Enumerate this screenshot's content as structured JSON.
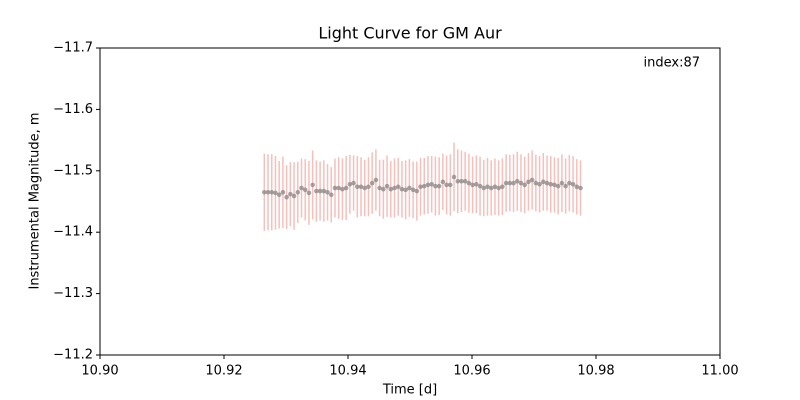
{
  "chart_data": {
    "type": "scatter",
    "title": "Light Curve for GM Aur",
    "xlabel": "Time [d]",
    "ylabel": "Instrumental Magnitude, m",
    "annotation": "index:87",
    "x": [
      10.9265,
      10.9271,
      10.9277,
      10.9283,
      10.9289,
      10.9295,
      10.9301,
      10.9307,
      10.9313,
      10.9319,
      10.9325,
      10.9331,
      10.9337,
      10.9343,
      10.9349,
      10.9355,
      10.9361,
      10.9367,
      10.9373,
      10.9379,
      10.9385,
      10.9391,
      10.9397,
      10.9403,
      10.9409,
      10.9415,
      10.9421,
      10.9427,
      10.9433,
      10.9439,
      10.9445,
      10.9451,
      10.9457,
      10.9463,
      10.9469,
      10.9475,
      10.9481,
      10.9487,
      10.9493,
      10.9499,
      10.9505,
      10.9511,
      10.9517,
      10.9523,
      10.9529,
      10.9535,
      10.9541,
      10.9547,
      10.9553,
      10.9559,
      10.9565,
      10.9571,
      10.9577,
      10.9583,
      10.9589,
      10.9595,
      10.9601,
      10.9607,
      10.9613,
      10.9619,
      10.9625,
      10.9631,
      10.9637,
      10.9643,
      10.9649,
      10.9655,
      10.9661,
      10.9667,
      10.9673,
      10.9679,
      10.9685,
      10.9691,
      10.9697,
      10.9703,
      10.9709,
      10.9715,
      10.9721,
      10.9727,
      10.9733,
      10.9739,
      10.9745,
      10.9751,
      10.9757,
      10.9763,
      10.9769,
      10.9775
    ],
    "series": [
      {
        "color": "#808080",
        "error_color": "#f4a9a3",
        "values": [
          -11.465,
          -11.465,
          -11.465,
          -11.464,
          -11.461,
          -11.465,
          -11.457,
          -11.462,
          -11.459,
          -11.465,
          -11.472,
          -11.469,
          -11.464,
          -11.477,
          -11.467,
          -11.467,
          -11.467,
          -11.465,
          -11.461,
          -11.472,
          -11.472,
          -11.47,
          -11.472,
          -11.478,
          -11.48,
          -11.474,
          -11.474,
          -11.472,
          -11.474,
          -11.48,
          -11.485,
          -11.472,
          -11.47,
          -11.475,
          -11.47,
          -11.472,
          -11.474,
          -11.47,
          -11.469,
          -11.472,
          -11.469,
          -11.467,
          -11.474,
          -11.475,
          -11.477,
          -11.478,
          -11.475,
          -11.475,
          -11.482,
          -11.477,
          -11.477,
          -11.49,
          -11.483,
          -11.483,
          -11.483,
          -11.48,
          -11.477,
          -11.478,
          -11.475,
          -11.472,
          -11.474,
          -11.472,
          -11.474,
          -11.472,
          -11.474,
          -11.48,
          -11.48,
          -11.48,
          -11.483,
          -11.48,
          -11.477,
          -11.482,
          -11.485,
          -11.48,
          -11.478,
          -11.482,
          -11.48,
          -11.478,
          -11.477,
          -11.475,
          -11.48,
          -11.475,
          -11.48,
          -11.478,
          -11.474,
          -11.472
        ],
        "errors": [
          0.063,
          0.062,
          0.062,
          0.06,
          0.055,
          0.058,
          0.052,
          0.052,
          0.055,
          0.05,
          0.048,
          0.05,
          0.052,
          0.056,
          0.05,
          0.048,
          0.05,
          0.046,
          0.045,
          0.048,
          0.05,
          0.05,
          0.052,
          0.048,
          0.045,
          0.05,
          0.048,
          0.046,
          0.048,
          0.05,
          0.05,
          0.046,
          0.048,
          0.05,
          0.046,
          0.048,
          0.047,
          0.046,
          0.048,
          0.047,
          0.046,
          0.048,
          0.047,
          0.046,
          0.047,
          0.046,
          0.048,
          0.047,
          0.046,
          0.048,
          0.05,
          0.056,
          0.052,
          0.05,
          0.048,
          0.048,
          0.046,
          0.047,
          0.048,
          0.046,
          0.047,
          0.045,
          0.046,
          0.045,
          0.046,
          0.047,
          0.046,
          0.047,
          0.048,
          0.047,
          0.046,
          0.047,
          0.048,
          0.046,
          0.046,
          0.047,
          0.045,
          0.046,
          0.045,
          0.046,
          0.047,
          0.045,
          0.046,
          0.046,
          0.045,
          0.045
        ]
      }
    ],
    "xlim": [
      10.9,
      11
    ],
    "ylim": [
      -11.2,
      -11.7
    ],
    "xticks": [
      {
        "value": 10.9,
        "label": "10.90"
      },
      10.92,
      10.94,
      10.96,
      10.98,
      {
        "value": 11,
        "label": "11.00"
      }
    ],
    "yticks": [
      {
        "value": -11.7,
        "label": "−11.7"
      },
      {
        "value": -11.6,
        "label": "−11.6"
      },
      {
        "value": -11.5,
        "label": "−11.5"
      },
      {
        "value": -11.4,
        "label": "−11.4"
      },
      {
        "value": -11.3,
        "label": "−11.3"
      },
      {
        "value": -11.2,
        "label": "−11.2"
      }
    ]
  }
}
